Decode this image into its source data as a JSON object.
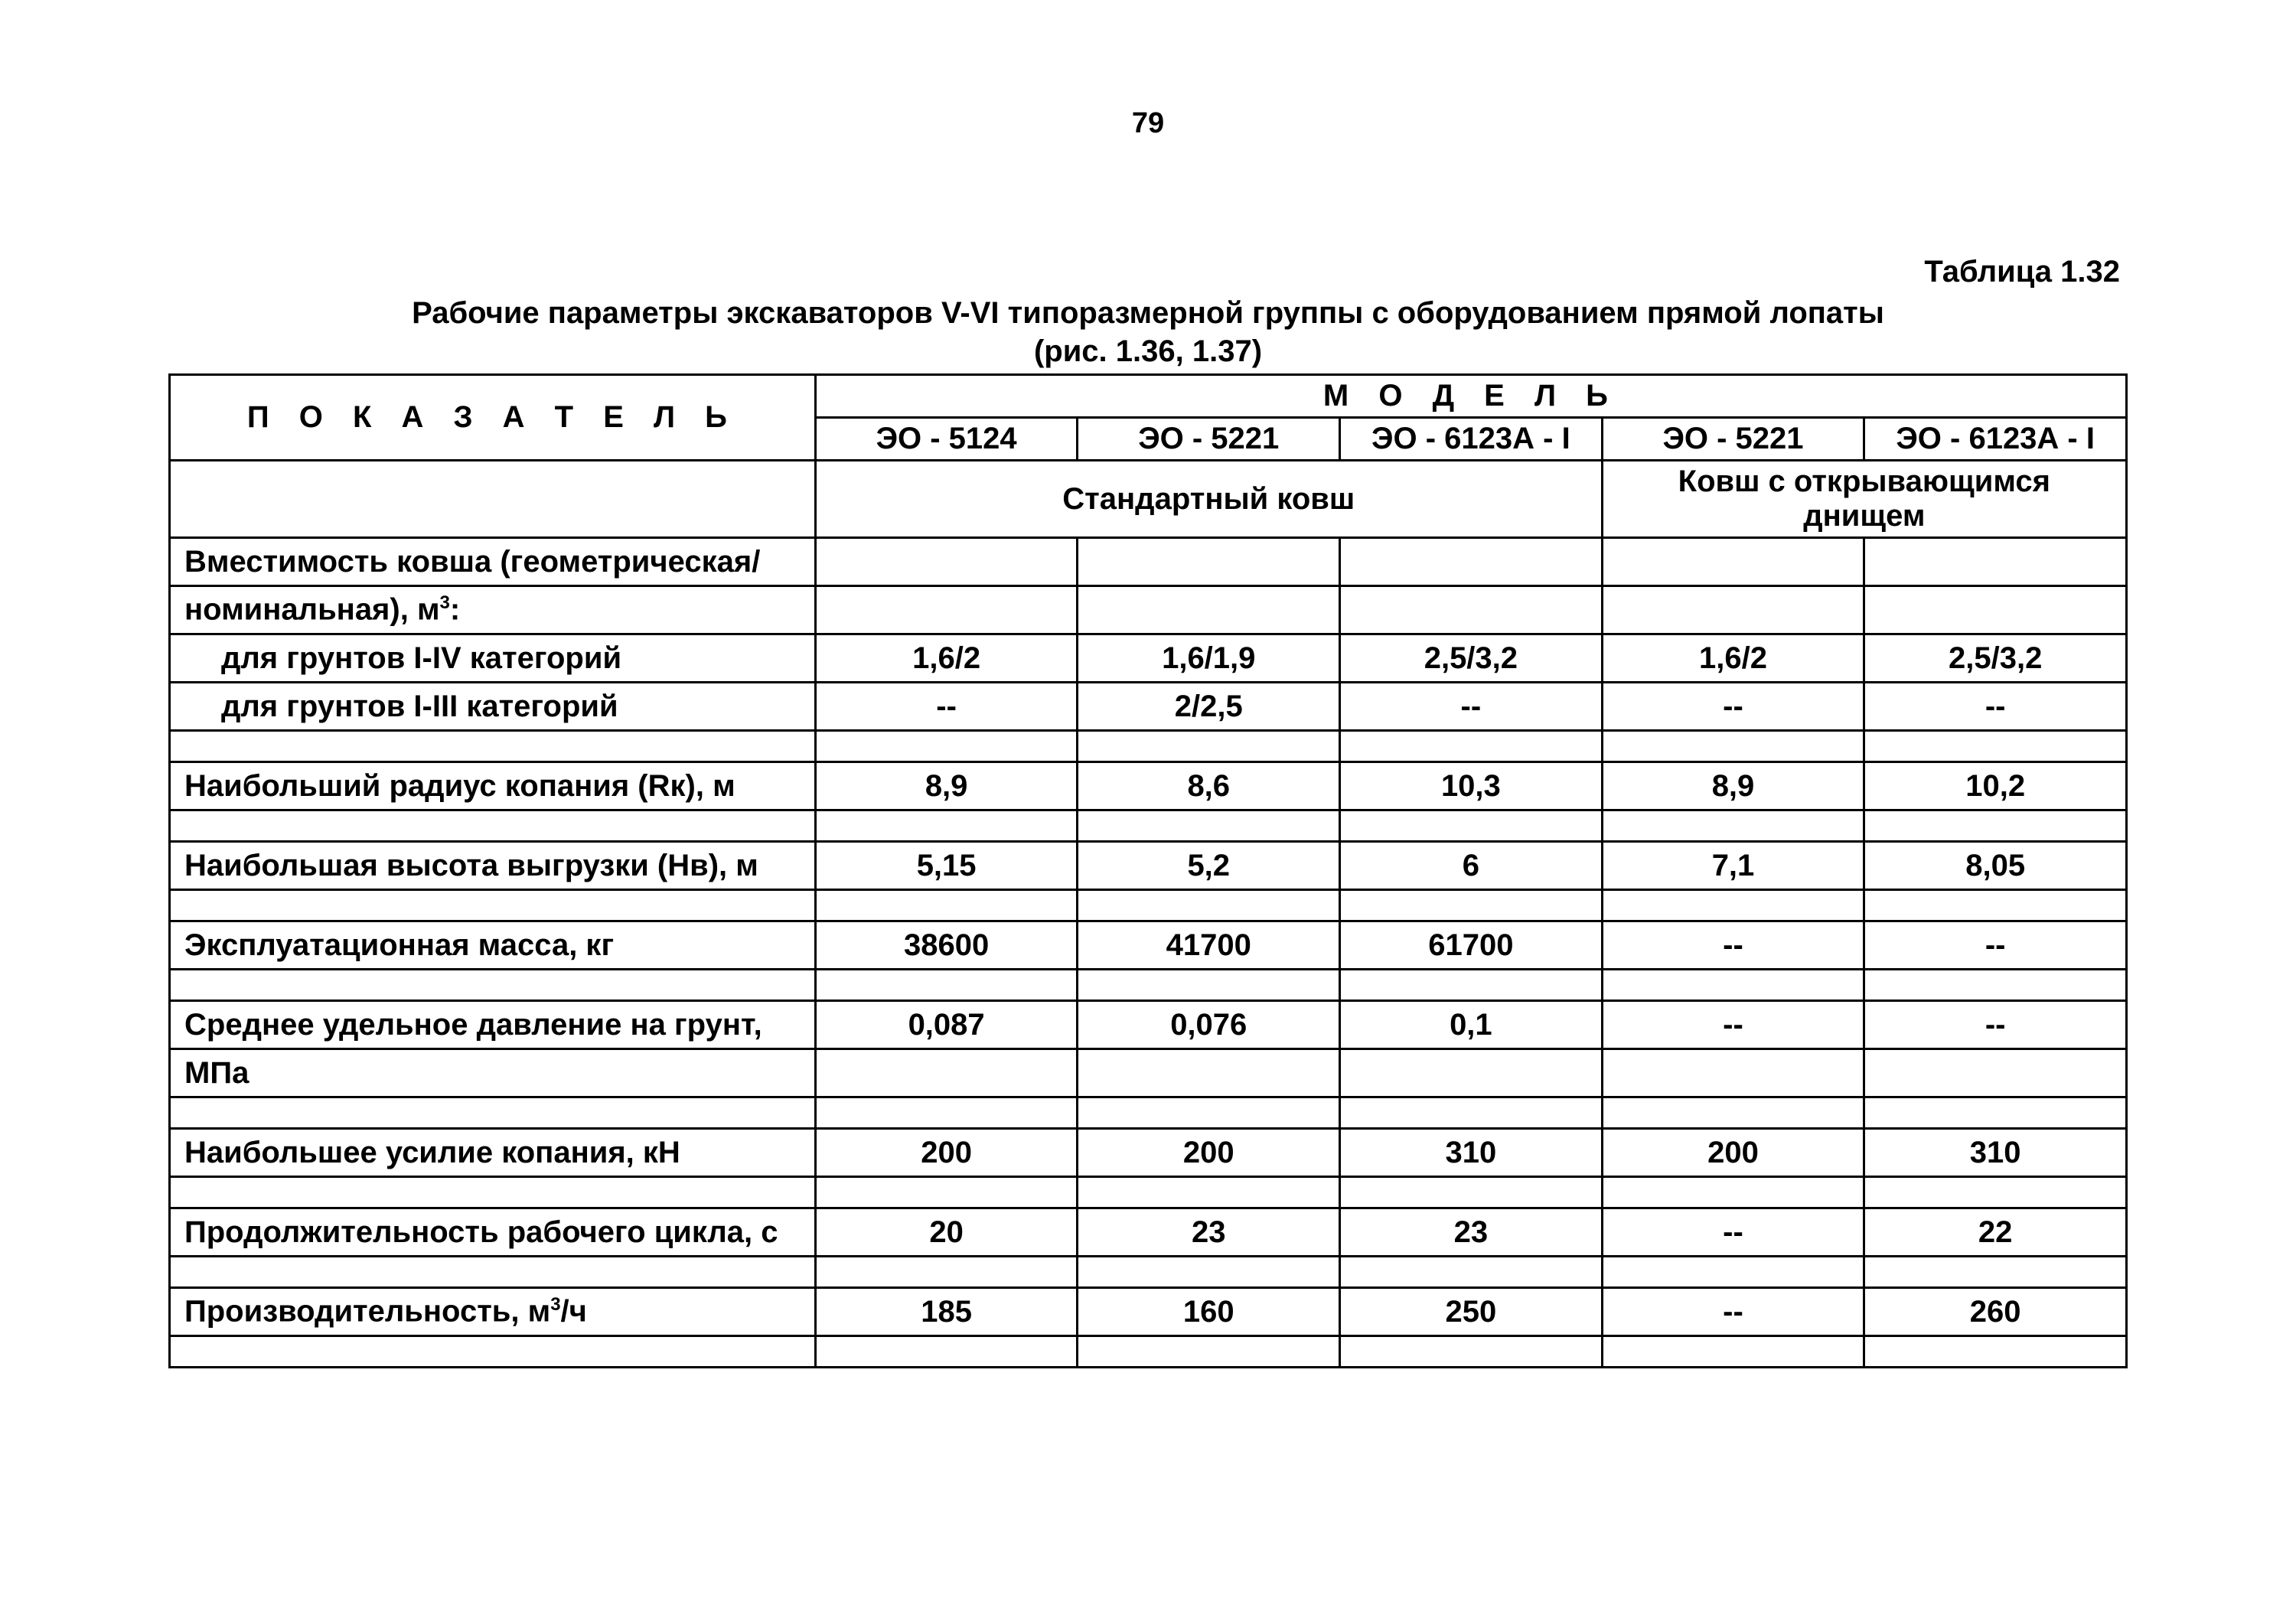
{
  "page_number": "79",
  "table_label": "Таблица  1.32",
  "title": "Рабочие параметры экскаваторов V-VI типоразмерной группы с оборудованием прямой лопаты",
  "subtitle": "(рис. 1.36, 1.37)",
  "table": {
    "indicator_header": "П О К А З А Т Е Л Ь",
    "model_header": "М О Д Е Л Ь",
    "columns": {
      "param_width": "33%",
      "data_width": "13.4%"
    },
    "models": [
      "ЭО - 5124",
      "ЭО - 5221",
      "ЭО - 6123А - I",
      "ЭО - 5221",
      "ЭО - 6123А - I"
    ],
    "bucket_groups": {
      "standard": {
        "label": "Стандартный ковш",
        "span": 3
      },
      "opening": {
        "label": "Ковш с открывающимся днищем",
        "span": 2
      }
    },
    "rows": [
      {
        "label": "Вместимость ковша (геометрическая/",
        "vals": [
          "",
          "",
          "",
          "",
          ""
        ]
      },
      {
        "label_html": "номинальная),  м<sup>3</sup>:",
        "vals": [
          "",
          "",
          "",
          "",
          ""
        ]
      },
      {
        "indent": true,
        "label": "для грунтов I-IV категорий",
        "vals": [
          "1,6/2",
          "1,6/1,9",
          "2,5/3,2",
          "1,6/2",
          "2,5/3,2"
        ]
      },
      {
        "indent": true,
        "label": "для грунтов I-III категорий",
        "vals": [
          "--",
          "2/2,5",
          "--",
          "--",
          "--"
        ]
      },
      {
        "gap": true
      },
      {
        "label": "Наибольший радиус копания (Rк),  м",
        "vals": [
          "8,9",
          "8,6",
          "10,3",
          "8,9",
          "10,2"
        ]
      },
      {
        "gap": true
      },
      {
        "label": "Наибольшая высота выгрузки (Нв),  м",
        "vals": [
          "5,15",
          "5,2",
          "6",
          "7,1",
          "8,05"
        ]
      },
      {
        "gap": true
      },
      {
        "label": "Эксплуатационная масса,  кг",
        "vals": [
          "38600",
          "41700",
          "61700",
          "--",
          "--"
        ]
      },
      {
        "gap": true
      },
      {
        "label": "Среднее удельное давление на грунт,",
        "vals": [
          "0,087",
          "0,076",
          "0,1",
          "--",
          "--"
        ]
      },
      {
        "label": "МПа",
        "vals": [
          "",
          "",
          "",
          "",
          ""
        ]
      },
      {
        "gap": true
      },
      {
        "label": "Наибольшее усилие копания,  кН",
        "vals": [
          "200",
          "200",
          "310",
          "200",
          "310"
        ]
      },
      {
        "gap": true
      },
      {
        "label": "Продолжительность рабочего цикла,  с",
        "vals": [
          "20",
          "23",
          "23",
          "--",
          "22"
        ]
      },
      {
        "gap": true
      },
      {
        "label_html": "Производительность,    м<sup>3</sup>/ч",
        "vals": [
          "185",
          "160",
          "250",
          "--",
          "260"
        ]
      },
      {
        "gap": true
      }
    ],
    "border_color": "#000000",
    "background_color": "#ffffff",
    "font_size_pt": 30,
    "font_weight": "bold"
  }
}
